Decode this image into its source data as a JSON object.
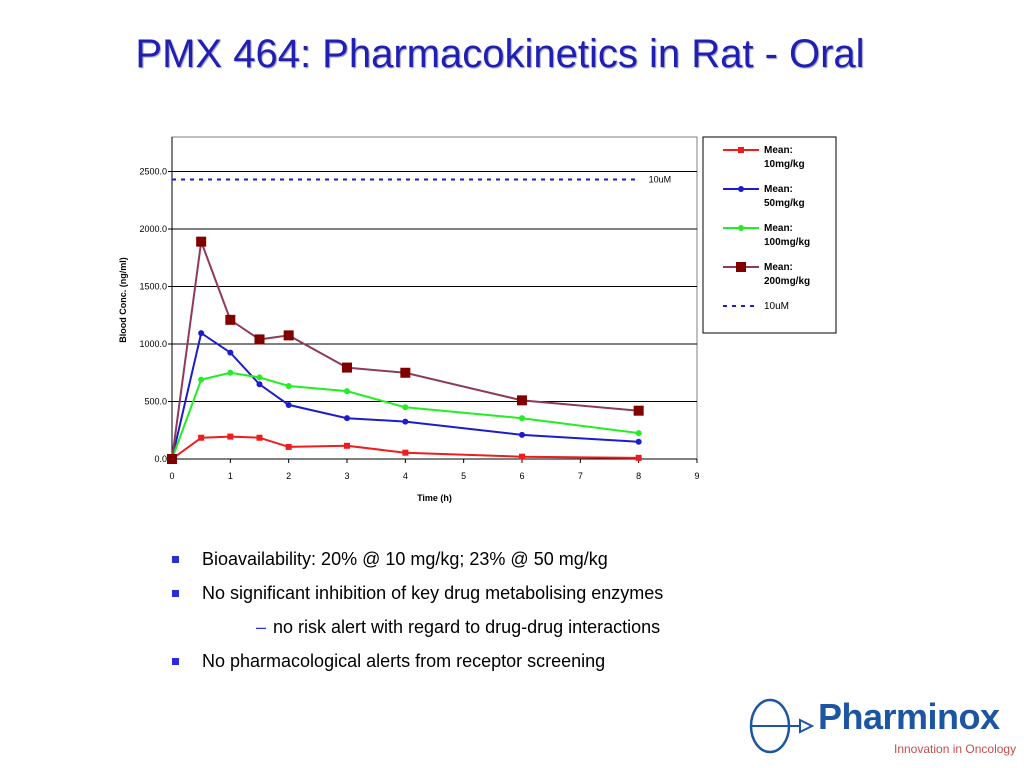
{
  "slide": {
    "title": "PMX 464: Pharmacokinetics in Rat - Oral"
  },
  "chart_data": {
    "type": "line",
    "xlabel": "Time (h)",
    "ylabel": "Blood Conc. (ng/ml)",
    "xlim": [
      0,
      9
    ],
    "ylim": [
      0,
      2500
    ],
    "x_ticks": [
      "0",
      "1",
      "2",
      "3",
      "4",
      "5",
      "6",
      "7",
      "8",
      "9"
    ],
    "y_ticks": [
      "0.0",
      "500.0",
      "1000.0",
      "1500.0",
      "2000.0",
      "2500.0"
    ],
    "grid": "horizontal",
    "legend_position": "right",
    "series": [
      {
        "name": "Mean: 10mg/kg",
        "legend_lines": [
          "Mean:",
          "10mg/kg"
        ],
        "color": "#ee1c1c",
        "marker": "small-square",
        "x": [
          0,
          0.5,
          1,
          1.5,
          2,
          3,
          4,
          6,
          8
        ],
        "y": [
          0,
          185,
          195,
          185,
          105,
          115,
          55,
          20,
          10
        ]
      },
      {
        "name": "Mean: 50mg/kg",
        "legend_lines": [
          "Mean:",
          "50mg/kg"
        ],
        "color": "#1c1ccc",
        "marker": "small-circle",
        "x": [
          0,
          0.5,
          1,
          1.5,
          2,
          3,
          4,
          6,
          8
        ],
        "y": [
          0,
          1095,
          925,
          650,
          470,
          355,
          325,
          210,
          150
        ]
      },
      {
        "name": "Mean: 100mg/kg",
        "legend_lines": [
          "Mean:",
          "100mg/kg"
        ],
        "color": "#22ee22",
        "marker": "small-circle",
        "x": [
          0,
          0.5,
          1,
          1.5,
          2,
          3,
          4,
          6,
          8
        ],
        "y": [
          0,
          690,
          750,
          710,
          635,
          590,
          450,
          355,
          225
        ]
      },
      {
        "name": "Mean: 200mg/kg",
        "legend_lines": [
          "Mean:",
          "200mg/kg"
        ],
        "color": "#8e3a59",
        "marker": "large-square",
        "marker_color": "#800000",
        "x": [
          0,
          0.5,
          1,
          1.5,
          2,
          3,
          4,
          6,
          8
        ],
        "y": [
          0,
          1890,
          1210,
          1040,
          1075,
          795,
          750,
          510,
          420
        ]
      }
    ],
    "reference_line": {
      "name": "10uM",
      "label": "10uM",
      "y": 2430,
      "x_range": [
        0,
        8
      ],
      "color": "#1c1ccc",
      "style": "dotted"
    }
  },
  "bullets": [
    "Bioavailability: 20% @ 10 mg/kg; 23% @ 50 mg/kg",
    "No significant inhibition of key drug metabolising enzymes"
  ],
  "sub_bullet": {
    "mark": "–",
    "text": "no risk alert with regard to drug-drug interactions"
  },
  "bullets_after": [
    "No pharmacological alerts from receptor screening"
  ],
  "logo": {
    "name": "Pharminox",
    "tagline": "Innovation in Oncology",
    "brand_color": "#1c56a3",
    "tagline_color": "#c0504d"
  }
}
